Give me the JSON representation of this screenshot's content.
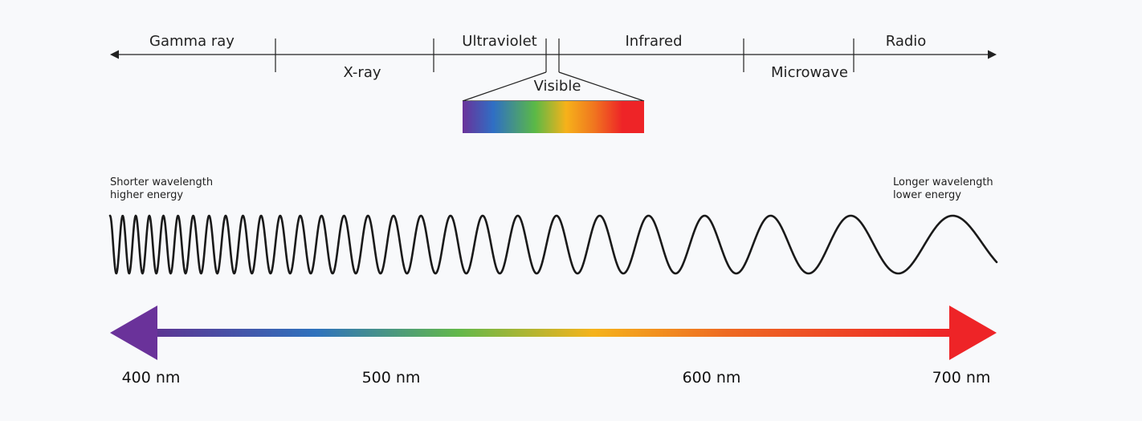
{
  "spectrum_bands": {
    "gamma": "Gamma ray",
    "xray": "X-ray",
    "ultraviolet": "Ultraviolet",
    "visible": "Visible",
    "infrared": "Infrared",
    "microwave": "Microwave",
    "radio": "Radio"
  },
  "energy_notes": {
    "short_line1": "Shorter wavelength",
    "short_line2": "higher energy",
    "long_line1": "Longer wavelength",
    "long_line2": "lower energy"
  },
  "wavelength_ticks": [
    "400 nm",
    "500 nm",
    "600 nm",
    "700 nm"
  ],
  "colors": {
    "violet": "#6a329a",
    "blue": "#2f6fc4",
    "green": "#5bb946",
    "yellow": "#f6b21a",
    "orange": "#f0781f",
    "red": "#ee2427",
    "line": "#222222"
  }
}
